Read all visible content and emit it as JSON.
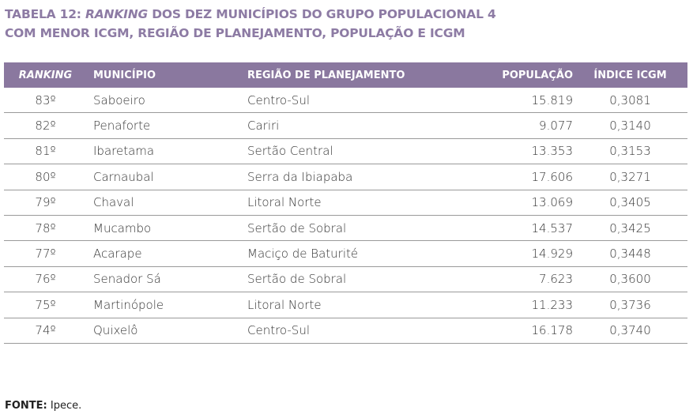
{
  "title": {
    "prefix": "TABELA 12: ",
    "italic": "RANKING",
    "line1_rest": " DOS DEZ MUNICÍPIOS DO GRUPO POPULACIONAL 4",
    "line2": "COM MENOR ICGM, REGIÃO DE PLANEJAMENTO, POPULAÇÃO E ICGM"
  },
  "colors": {
    "title": "#8d7ba4",
    "header_bg": "#8a789f"
  },
  "columns": [
    "RANKING",
    "MUNICÍPIO",
    "REGIÃO DE PLANEJAMENTO",
    "POPULAÇÃO",
    "ÍNDICE ICGM"
  ],
  "rows": [
    [
      "83º",
      "Saboeiro",
      "Centro-Sul",
      "15.819",
      "0,3081"
    ],
    [
      "82º",
      "Penaforte",
      "Cariri",
      "9.077",
      "0,3140"
    ],
    [
      "81º",
      "Ibaretama",
      "Sertão Central",
      "13.353",
      "0,3153"
    ],
    [
      "80º",
      "Carnaubal",
      "Serra da Ibiapaba",
      "17.606",
      "0,3271"
    ],
    [
      "79º",
      "Chaval",
      "Litoral Norte",
      "13.069",
      "0,3405"
    ],
    [
      "78º",
      "Mucambo",
      "Sertão de Sobral",
      "14.537",
      "0,3425"
    ],
    [
      "77º",
      "Acarape",
      "Maciço de Baturité",
      "14.929",
      "0,3448"
    ],
    [
      "76º",
      "Senador Sá",
      "Sertão de Sobral",
      "7.623",
      "0,3600"
    ],
    [
      "75º",
      "Martinópole",
      "Litoral Norte",
      "11.233",
      "0,3736"
    ],
    [
      "74º",
      "Quixelô",
      "Centro-Sul",
      "16.178",
      "0,3740"
    ]
  ],
  "source": {
    "label": "FONTE:",
    "text": " Ipece."
  }
}
